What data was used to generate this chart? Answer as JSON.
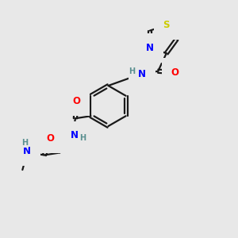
{
  "bg_color": "#e8e8e8",
  "bond_color": "#1a1a1a",
  "bond_width": 1.6,
  "atom_colors": {
    "N": "#0000ff",
    "O": "#ff0000",
    "S": "#cccc00",
    "H_label": "#5a9090"
  },
  "font_size": 8.5,
  "font_size_h": 7.0,
  "figsize": [
    3.0,
    3.0
  ],
  "dpi": 100,
  "xlim": [
    0,
    10
  ],
  "ylim": [
    0,
    10
  ]
}
